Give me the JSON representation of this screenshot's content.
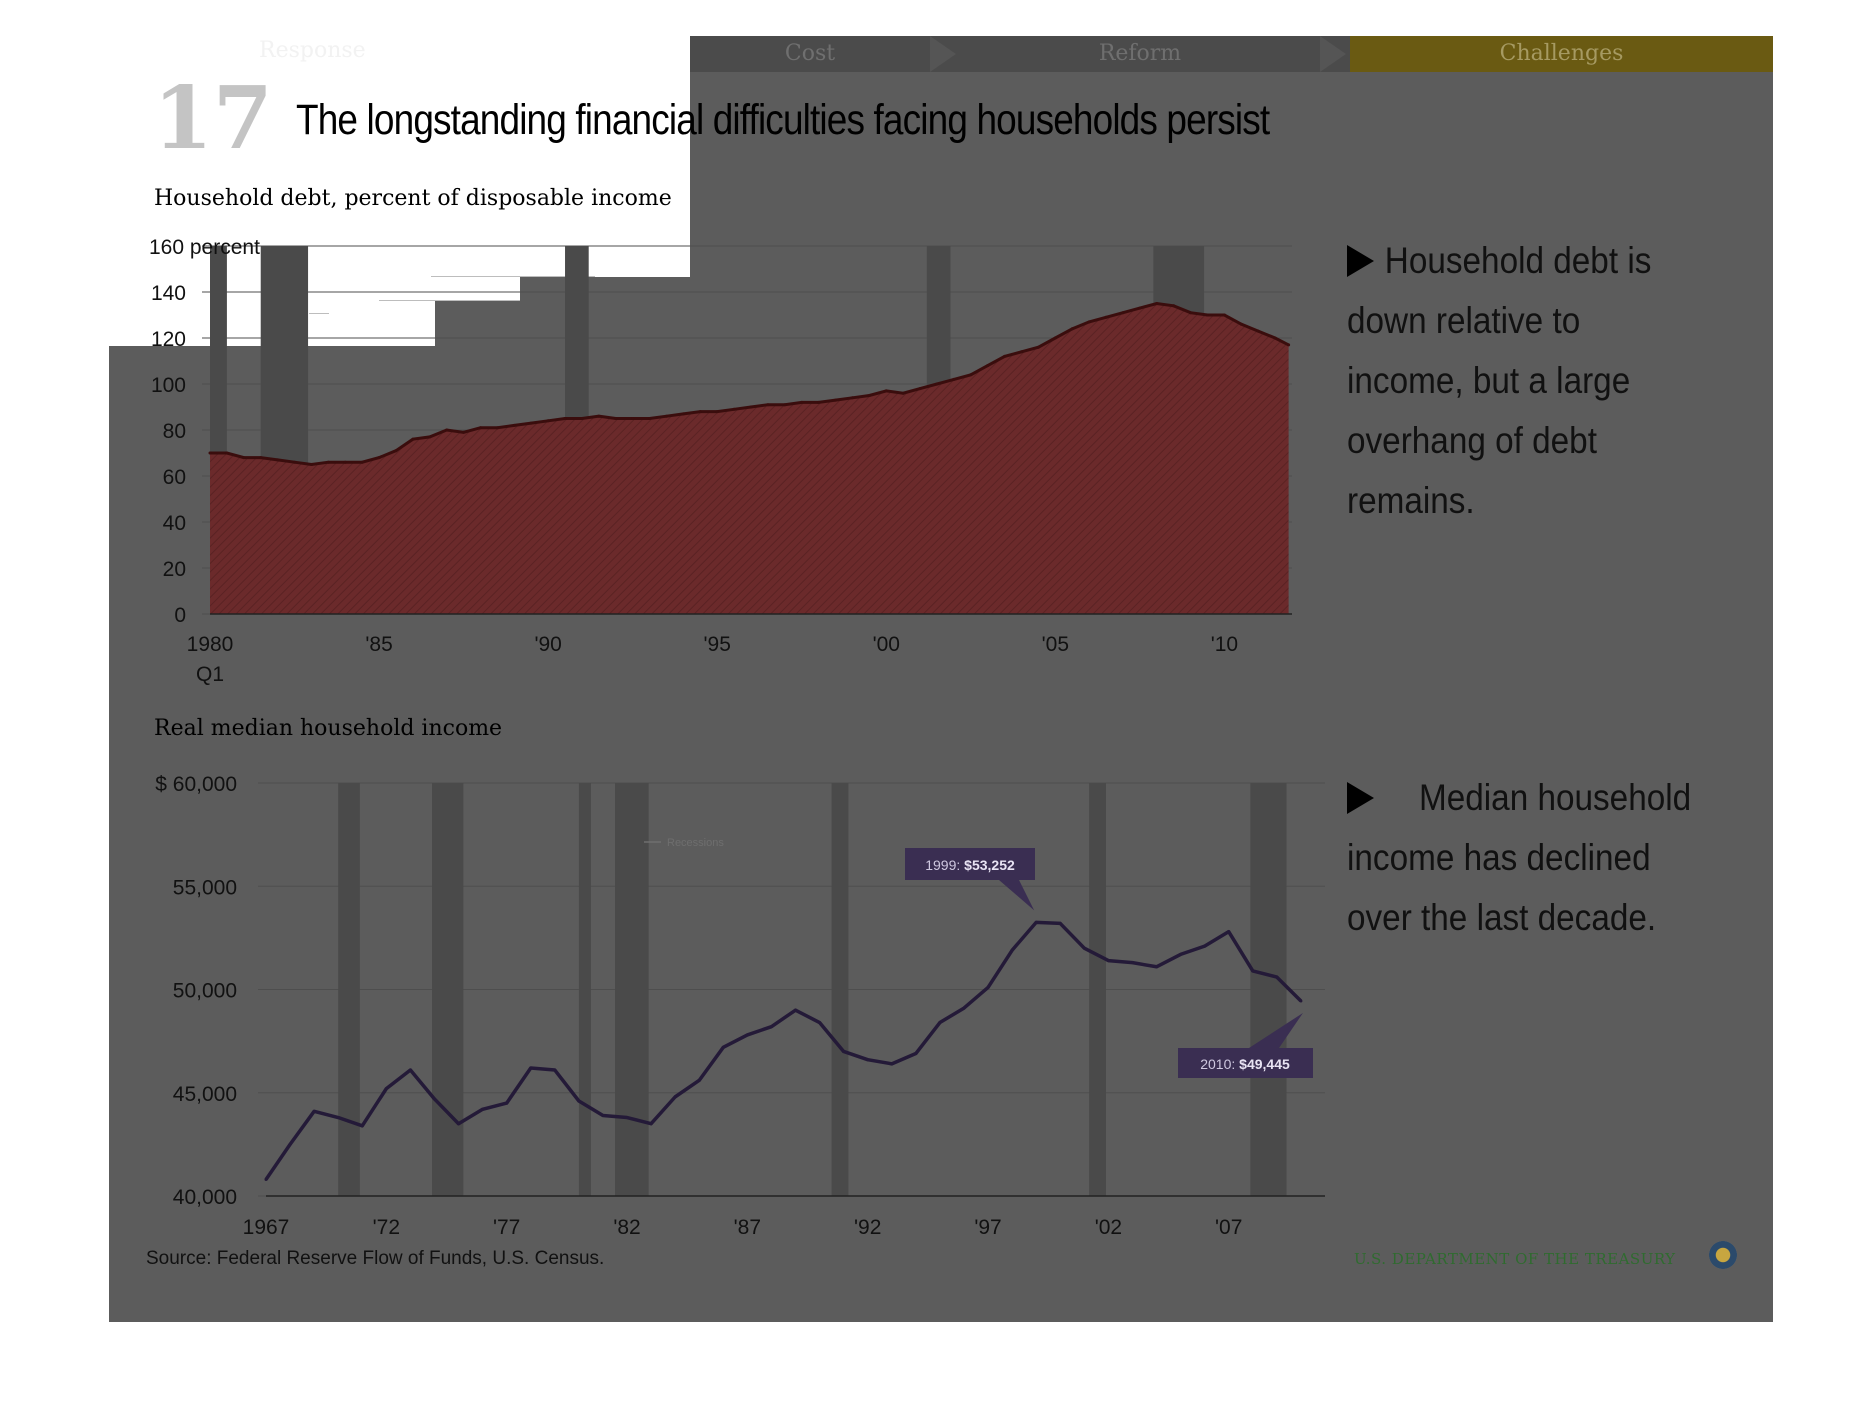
{
  "nav": {
    "tabs": [
      "Response",
      "Cost",
      "Reform",
      "Challenges"
    ],
    "active": "Challenges"
  },
  "header": {
    "slide_number": "17",
    "title": "The longstanding financial difficulties facing households persist"
  },
  "bullets": [
    "Household debt is down relative to income, but a large overhang of debt remains.",
    "Median household income has declined over the last decade."
  ],
  "footer": {
    "source": "Source: Federal Reserve Flow of Funds, U.S. Census.",
    "agency": "U.S. DEPARTMENT OF THE TREASURY"
  },
  "colors": {
    "slide_bg": "#5c5c5c",
    "debt_area": "#6b2a2b",
    "debt_line": "#3a0d0d",
    "income_line": "#241a38",
    "callout_bg": "#3a2e52",
    "recession_band": "#4a4a4a",
    "active_tab": "#6a5a12"
  },
  "chart_data": [
    {
      "type": "area",
      "title": "Household debt, percent of disposable income",
      "ylabel": "percent",
      "ytick_labels": [
        "0",
        "20",
        "40",
        "60",
        "80",
        "100",
        "120",
        "140",
        "160 percent"
      ],
      "ylim": [
        0,
        160
      ],
      "xlim": [
        1980.0,
        2012.0
      ],
      "xtick_labels": [
        {
          "x": 1980,
          "label": "1980",
          "sub": "Q1"
        },
        {
          "x": 1985,
          "label": "'85"
        },
        {
          "x": 1990,
          "label": "'90"
        },
        {
          "x": 1995,
          "label": "'95"
        },
        {
          "x": 2000,
          "label": "'00"
        },
        {
          "x": 2005,
          "label": "'05"
        },
        {
          "x": 2010,
          "label": "'10"
        }
      ],
      "recessions": [
        [
          1980.0,
          1980.5
        ],
        [
          1981.5,
          1982.9
        ],
        [
          1990.5,
          1991.2
        ],
        [
          2001.2,
          2001.9
        ],
        [
          2007.9,
          2009.4
        ]
      ],
      "x": [
        1980.0,
        1980.5,
        1981.0,
        1981.5,
        1982.0,
        1982.5,
        1983.0,
        1983.5,
        1984.0,
        1984.5,
        1985.0,
        1985.5,
        1986.0,
        1986.5,
        1987.0,
        1987.5,
        1988.0,
        1988.5,
        1989.0,
        1989.5,
        1990.0,
        1990.5,
        1991.0,
        1991.5,
        1992.0,
        1992.5,
        1993.0,
        1993.5,
        1994.0,
        1994.5,
        1995.0,
        1995.5,
        1996.0,
        1996.5,
        1997.0,
        1997.5,
        1998.0,
        1998.5,
        1999.0,
        1999.5,
        2000.0,
        2000.5,
        2001.0,
        2001.5,
        2002.0,
        2002.5,
        2003.0,
        2003.5,
        2004.0,
        2004.5,
        2005.0,
        2005.5,
        2006.0,
        2006.5,
        2007.0,
        2007.5,
        2008.0,
        2008.5,
        2009.0,
        2009.5,
        2010.0,
        2010.5,
        2011.0,
        2011.5,
        2011.9
      ],
      "values": [
        70,
        70,
        68,
        68,
        67,
        66,
        65,
        66,
        66,
        66,
        68,
        71,
        76,
        77,
        80,
        79,
        81,
        81,
        82,
        83,
        84,
        85,
        85,
        86,
        85,
        85,
        85,
        86,
        87,
        88,
        88,
        89,
        90,
        91,
        91,
        92,
        92,
        93,
        94,
        95,
        97,
        96,
        98,
        100,
        102,
        104,
        108,
        112,
        114,
        116,
        120,
        124,
        127,
        129,
        131,
        133,
        135,
        134,
        131,
        130,
        130,
        126,
        123,
        120,
        117
      ]
    },
    {
      "type": "line",
      "title": "Real median household income",
      "ytick_labels": [
        "40,000",
        "45,000",
        "50,000",
        "55,000",
        "$ 60,000"
      ],
      "ylim": [
        40000,
        60000
      ],
      "xlim": [
        1967,
        2011
      ],
      "xtick_labels": [
        {
          "x": 1967,
          "label": "1967"
        },
        {
          "x": 1972,
          "label": "'72"
        },
        {
          "x": 1977,
          "label": "'77"
        },
        {
          "x": 1982,
          "label": "'82"
        },
        {
          "x": 1987,
          "label": "'87"
        },
        {
          "x": 1992,
          "label": "'92"
        },
        {
          "x": 1997,
          "label": "'97"
        },
        {
          "x": 2002,
          "label": "'02"
        },
        {
          "x": 2007,
          "label": "'07"
        }
      ],
      "legend": "Recessions",
      "recessions": [
        [
          1970.0,
          1970.9
        ],
        [
          1973.9,
          1975.2
        ],
        [
          1980.0,
          1980.5
        ],
        [
          1981.5,
          1982.9
        ],
        [
          1990.5,
          1991.2
        ],
        [
          2001.2,
          2001.9
        ],
        [
          2007.9,
          2009.4
        ]
      ],
      "x": [
        1967,
        1968,
        1969,
        1970,
        1971,
        1972,
        1973,
        1974,
        1975,
        1976,
        1977,
        1978,
        1979,
        1980,
        1981,
        1982,
        1983,
        1984,
        1985,
        1986,
        1987,
        1988,
        1989,
        1990,
        1991,
        1992,
        1993,
        1994,
        1995,
        1996,
        1997,
        1998,
        1999,
        2000,
        2001,
        2002,
        2003,
        2004,
        2005,
        2006,
        2007,
        2008,
        2009,
        2010
      ],
      "values": [
        40800,
        42500,
        44100,
        43800,
        43400,
        45200,
        46100,
        44700,
        43500,
        44200,
        44500,
        46200,
        46100,
        44600,
        43900,
        43800,
        43500,
        44800,
        45600,
        47200,
        47800,
        48200,
        49000,
        48400,
        47000,
        46600,
        46400,
        46900,
        48400,
        49100,
        50100,
        51900,
        53252,
        53200,
        52000,
        51400,
        51300,
        51100,
        51700,
        52100,
        52800,
        50900,
        50600,
        49445
      ],
      "annotations": [
        {
          "year": "1999",
          "value": "$53,252"
        },
        {
          "year": "2010",
          "value": "$49,445"
        }
      ]
    }
  ]
}
